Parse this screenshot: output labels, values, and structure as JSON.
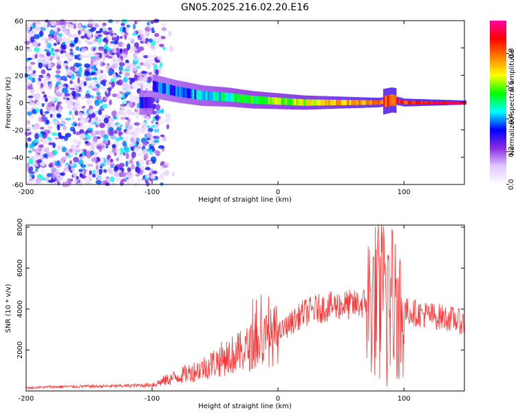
{
  "title": "GN05.2025.216.02.20.E16",
  "colors": {
    "spectrogram_low": "#8a2be2",
    "spectrogram_mid": "#00d0ff",
    "spectrogram_high": "#ff0000",
    "snr_line": "#ff3333"
  },
  "chart_data": [
    {
      "type": "heatmap",
      "xlabel": "Height of straight line (km)",
      "ylabel": "Frequency (Hz)",
      "xlim": [
        -200,
        148
      ],
      "ylim": [
        -60,
        60
      ],
      "xticks": [
        -200,
        -100,
        0,
        100
      ],
      "yticks": [
        -60,
        -40,
        -20,
        0,
        20,
        40,
        60
      ],
      "xtick_labels": [
        "-200",
        "-100",
        "0",
        "100"
      ],
      "ytick_labels": [
        "-60",
        "-40",
        "-20",
        "0",
        "20",
        "40",
        "60"
      ],
      "colorbar": {
        "label": "Normalized spectral amplitude",
        "range": [
          0.0,
          1.0
        ],
        "ticks": [
          0.0,
          0.2,
          0.4,
          0.6,
          0.8
        ],
        "tick_labels": [
          "0.0",
          "0.2",
          "0.4",
          "0.6",
          "0.8"
        ],
        "colormap": [
          "#ffffff",
          "#e0c8ff",
          "#8a2be2",
          "#0000ff",
          "#00ffff",
          "#00ff00",
          "#ffff00",
          "#ff8000",
          "#ff0000",
          "#ff00a0"
        ]
      },
      "dominant_frequency_track": {
        "x": [
          -100,
          -80,
          -60,
          -40,
          -20,
          0,
          20,
          40,
          60,
          80,
          90,
          100,
          120,
          148
        ],
        "y": [
          12,
          8,
          5,
          4,
          2,
          1,
          0,
          0,
          0,
          0,
          2,
          0,
          0,
          0
        ]
      },
      "noise_region_x": [
        -200,
        -95
      ]
    },
    {
      "type": "line",
      "xlabel": "Height of straight line (km)",
      "ylabel": "SNR (10 * v/v)",
      "xlim": [
        -200,
        148
      ],
      "ylim": [
        0,
        8100
      ],
      "xticks": [
        -200,
        -100,
        0,
        100
      ],
      "yticks": [
        2000,
        4000,
        6000,
        8000
      ],
      "xtick_labels": [
        "-200",
        "-100",
        "0",
        "100"
      ],
      "ytick_labels": [
        "2000",
        "4000",
        "6000",
        "8000"
      ],
      "series": [
        {
          "x": [
            -200,
            -180,
            -160,
            -140,
            -120,
            -100,
            -90,
            -80,
            -70,
            -60,
            -50,
            -40,
            -30,
            -20,
            -10,
            0,
            10,
            20,
            30,
            40,
            50,
            60,
            70,
            80,
            85,
            90,
            95,
            100,
            110,
            120,
            130,
            140,
            148
          ],
          "values": [
            150,
            200,
            220,
            230,
            250,
            300,
            500,
            700,
            900,
            1100,
            1400,
            1700,
            1900,
            2200,
            2500,
            2800,
            3300,
            3800,
            4000,
            4100,
            4200,
            4200,
            4300,
            4500,
            4600,
            4500,
            4200,
            3900,
            3800,
            3700,
            3600,
            3500,
            3300
          ],
          "color": "#ff3333"
        }
      ]
    }
  ]
}
